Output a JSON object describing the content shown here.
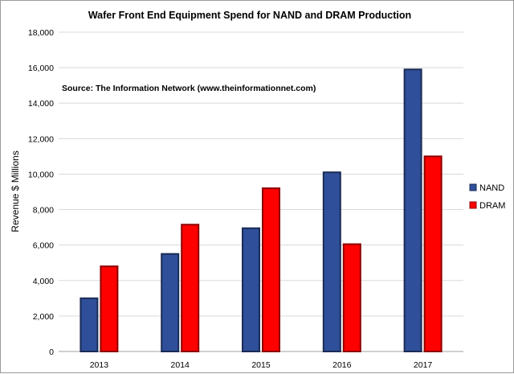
{
  "chart_data": {
    "type": "bar",
    "title": "Wafer Front End Equipment Spend for NAND and DRAM Production",
    "subtitle": "Source: The Information Network (www.theinformationnet.com)",
    "xlabel": "",
    "ylabel": "Revenue $ Millions",
    "categories": [
      "2013",
      "2014",
      "2015",
      "2016",
      "2017"
    ],
    "series": [
      {
        "name": "NAND",
        "color": "#2f4f9a",
        "values": [
          3000,
          5500,
          6950,
          10100,
          15900
        ]
      },
      {
        "name": "DRAM",
        "color": "#ff0000",
        "values": [
          4800,
          7150,
          9200,
          6050,
          11000
        ]
      }
    ],
    "ylim": [
      0,
      18000
    ],
    "yticks": [
      "0",
      "2,000",
      "4,000",
      "6,000",
      "8,000",
      "10,000",
      "12,000",
      "14,000",
      "16,000",
      "18,000"
    ],
    "ytick_values": [
      0,
      2000,
      4000,
      6000,
      8000,
      10000,
      12000,
      14000,
      16000,
      18000
    ],
    "grid": true,
    "legend_position": "right"
  }
}
